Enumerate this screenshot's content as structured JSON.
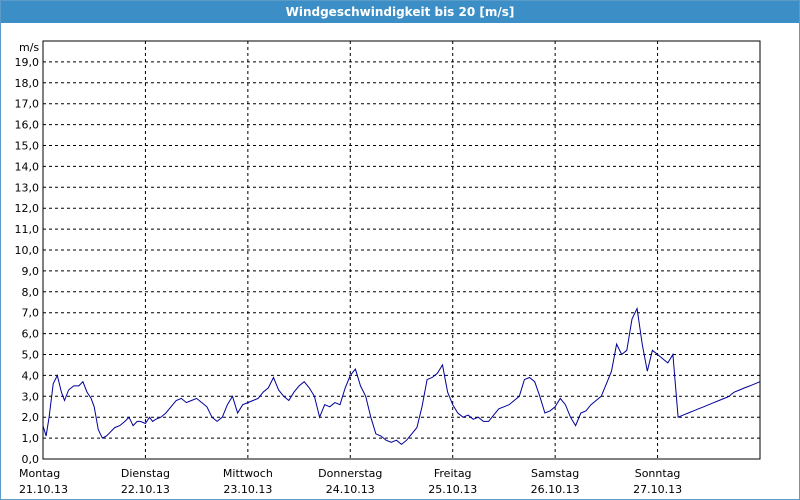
{
  "window": {
    "title": "Windgeschwindigkeit bis 20 [m/s]"
  },
  "chart_data": {
    "type": "line",
    "title": "Windgeschwindigkeit bis 20 [m/s]",
    "ylabel": "m/s",
    "ylim": [
      0,
      20
    ],
    "xlim": [
      0,
      7
    ],
    "yticks": [
      "0,0",
      "1,0",
      "2,0",
      "3,0",
      "4,0",
      "5,0",
      "6,0",
      "7,0",
      "8,0",
      "9,0",
      "10,0",
      "11,0",
      "12,0",
      "13,0",
      "14,0",
      "15,0",
      "16,0",
      "17,0",
      "18,0",
      "19,0"
    ],
    "xticks": [
      {
        "day": "Montag",
        "date": "21.10.13"
      },
      {
        "day": "Dienstag",
        "date": "22.10.13"
      },
      {
        "day": "Mittwoch",
        "date": "23.10.13"
      },
      {
        "day": "Donnerstag",
        "date": "24.10.13"
      },
      {
        "day": "Freitag",
        "date": "25.10.13"
      },
      {
        "day": "Samstag",
        "date": "26.10.13"
      },
      {
        "day": "Sonntag",
        "date": "27.10.13"
      }
    ],
    "grid": true,
    "series": [
      {
        "color": "#000099",
        "x": [
          0.0,
          0.03,
          0.06,
          0.1,
          0.14,
          0.18,
          0.21,
          0.25,
          0.3,
          0.35,
          0.39,
          0.43,
          0.47,
          0.5,
          0.54,
          0.58,
          0.62,
          0.66,
          0.7,
          0.75,
          0.8,
          0.84,
          0.88,
          0.92,
          0.95,
          1.0,
          1.04,
          1.07,
          1.1,
          1.15,
          1.2,
          1.25,
          1.3,
          1.35,
          1.4,
          1.45,
          1.5,
          1.55,
          1.6,
          1.65,
          1.7,
          1.75,
          1.8,
          1.85,
          1.9,
          1.95,
          2.0,
          2.05,
          2.1,
          2.15,
          2.2,
          2.25,
          2.3,
          2.35,
          2.4,
          2.45,
          2.5,
          2.55,
          2.6,
          2.65,
          2.7,
          2.75,
          2.8,
          2.85,
          2.9,
          2.95,
          3.0,
          3.05,
          3.1,
          3.15,
          3.2,
          3.25,
          3.3,
          3.35,
          3.4,
          3.45,
          3.5,
          3.55,
          3.6,
          3.65,
          3.7,
          3.75,
          3.8,
          3.85,
          3.9,
          3.95,
          4.0,
          4.05,
          4.1,
          4.15,
          4.2,
          4.25,
          4.3,
          4.35,
          4.4,
          4.45,
          4.5,
          4.55,
          4.6,
          4.65,
          4.7,
          4.75,
          4.8,
          4.85,
          4.9,
          4.95,
          5.0,
          5.05,
          5.1,
          5.15,
          5.2,
          5.25,
          5.3,
          5.35,
          5.4,
          5.45,
          5.5,
          5.55,
          5.6,
          5.65,
          5.7,
          5.75,
          5.8,
          5.85,
          5.9,
          5.95,
          6.0,
          6.05,
          6.1,
          6.15,
          6.2,
          6.25,
          6.3,
          6.35,
          6.4,
          6.45,
          6.5,
          6.55,
          6.6,
          6.65,
          6.7,
          6.72,
          6.75,
          6.8,
          6.85,
          6.9,
          6.95,
          7.0
        ],
        "y": [
          1.6,
          1.1,
          2.0,
          3.6,
          4.0,
          3.2,
          2.8,
          3.3,
          3.5,
          3.5,
          3.7,
          3.2,
          2.9,
          2.5,
          1.4,
          1.0,
          1.1,
          1.3,
          1.5,
          1.6,
          1.8,
          2.0,
          1.6,
          1.8,
          1.8,
          1.7,
          2.0,
          1.8,
          1.9,
          2.0,
          2.2,
          2.5,
          2.8,
          2.9,
          2.7,
          2.8,
          2.9,
          2.7,
          2.5,
          2.0,
          1.8,
          2.0,
          2.6,
          3.0,
          2.2,
          2.6,
          2.7,
          2.8,
          2.9,
          3.2,
          3.4,
          3.9,
          3.3,
          3.0,
          2.8,
          3.2,
          3.5,
          3.7,
          3.4,
          3.0,
          2.0,
          2.6,
          2.5,
          2.7,
          2.6,
          3.4,
          4.0,
          4.3,
          3.5,
          3.0,
          2.0,
          1.2,
          1.1,
          0.9,
          0.8,
          0.9,
          0.7,
          0.9,
          1.2,
          1.5,
          2.5,
          3.8,
          3.9,
          4.1,
          4.5,
          3.2,
          2.6,
          2.2,
          2.0,
          2.1,
          1.9,
          2.0,
          1.8,
          1.8,
          2.1,
          2.4,
          2.5,
          2.6,
          2.8,
          3.0,
          3.8,
          3.9,
          3.7,
          3.0,
          2.2,
          2.3,
          2.5,
          2.9,
          2.6,
          2.0,
          1.6,
          2.2,
          2.3,
          2.6,
          2.8,
          3.0,
          3.6,
          4.2,
          5.5,
          5.0,
          5.2,
          6.7,
          7.2,
          5.5,
          4.2,
          5.2,
          5.0,
          4.8,
          4.6,
          5.0,
          2.0,
          2.1,
          2.2,
          2.3,
          2.4,
          2.5,
          2.6,
          2.7,
          2.8,
          2.9,
          3.0,
          3.1,
          3.2,
          3.3,
          3.4,
          3.5,
          3.6,
          3.7
        ]
      }
    ]
  }
}
